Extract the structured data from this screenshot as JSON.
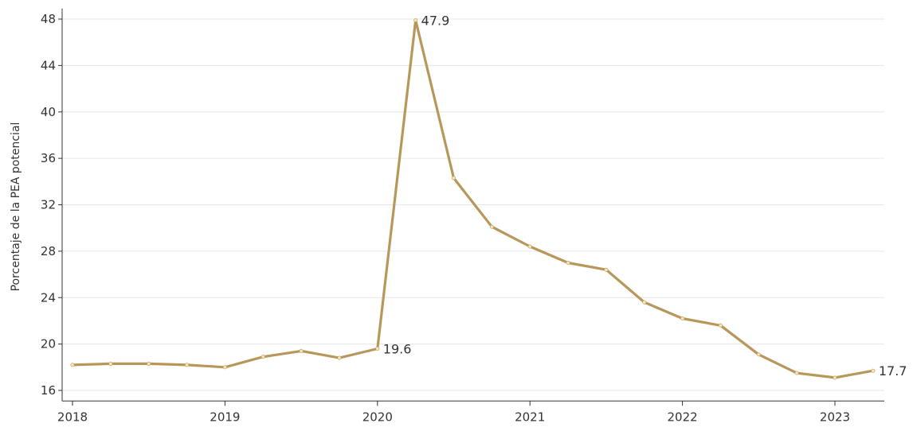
{
  "chart_data": {
    "type": "line",
    "title": "",
    "xlabel": "",
    "ylabel": "Porcentaje de la PEA potencial",
    "xlim": [
      2018,
      2023.3
    ],
    "ylim": [
      15.5,
      48.5
    ],
    "yticks": [
      16,
      20,
      24,
      28,
      32,
      36,
      40,
      44,
      48
    ],
    "xticks": [
      2018,
      2019,
      2020,
      2021,
      2022,
      2023
    ],
    "grid": true,
    "legend": "none",
    "series": [
      {
        "color": "#B8975B",
        "x": [
          2018,
          2018.25,
          2018.5,
          2018.75,
          2019,
          2019.25,
          2019.5,
          2019.75,
          2020,
          2020.25,
          2020.5,
          2020.75,
          2021,
          2021.25,
          2021.5,
          2021.75,
          2022,
          2022.25,
          2022.5,
          2022.75,
          2023,
          2023.25
        ],
        "y": [
          18.2,
          18.3,
          18.3,
          18.2,
          18.0,
          18.9,
          19.4,
          18.8,
          19.6,
          47.9,
          34.3,
          30.1,
          28.4,
          27.0,
          26.4,
          23.6,
          22.2,
          21.6,
          19.1,
          17.5,
          17.1,
          17.7
        ]
      }
    ],
    "annotations": [
      {
        "x": 2020,
        "y": 19.6,
        "text": "19.6"
      },
      {
        "x": 2020.25,
        "y": 47.9,
        "text": "47.9"
      },
      {
        "x": 2023.25,
        "y": 17.7,
        "text": "17.7"
      }
    ]
  }
}
